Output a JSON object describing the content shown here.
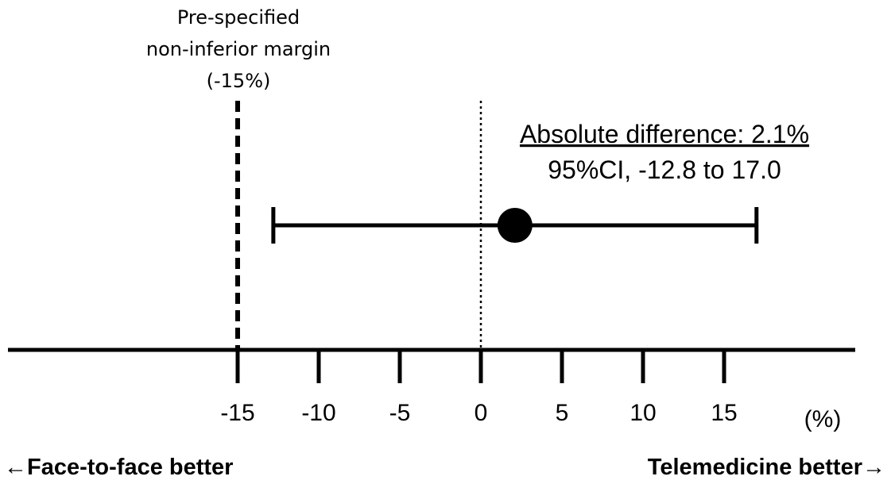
{
  "chart_data": {
    "type": "forest",
    "margin_label_lines": [
      "Pre-specified",
      "non-inferior margin",
      "(-15%)"
    ],
    "non_inferiority_margin": -15,
    "reference_line": 0,
    "estimate": {
      "point": 2.1,
      "ci_low": -12.8,
      "ci_high": 17.0,
      "label_line1": "Absolute difference: 2.1%",
      "label_line2": "95%CI, -12.8 to 17.0"
    },
    "x_ticks": [
      -15,
      -10,
      -5,
      0,
      5,
      10,
      15
    ],
    "x_tick_labels": [
      "-15",
      "-10",
      "-5",
      "0",
      "5",
      "10",
      "15"
    ],
    "x_unit": "(%)",
    "left_label": "←Face-to-face better",
    "right_label": "Telemedicine better→"
  }
}
